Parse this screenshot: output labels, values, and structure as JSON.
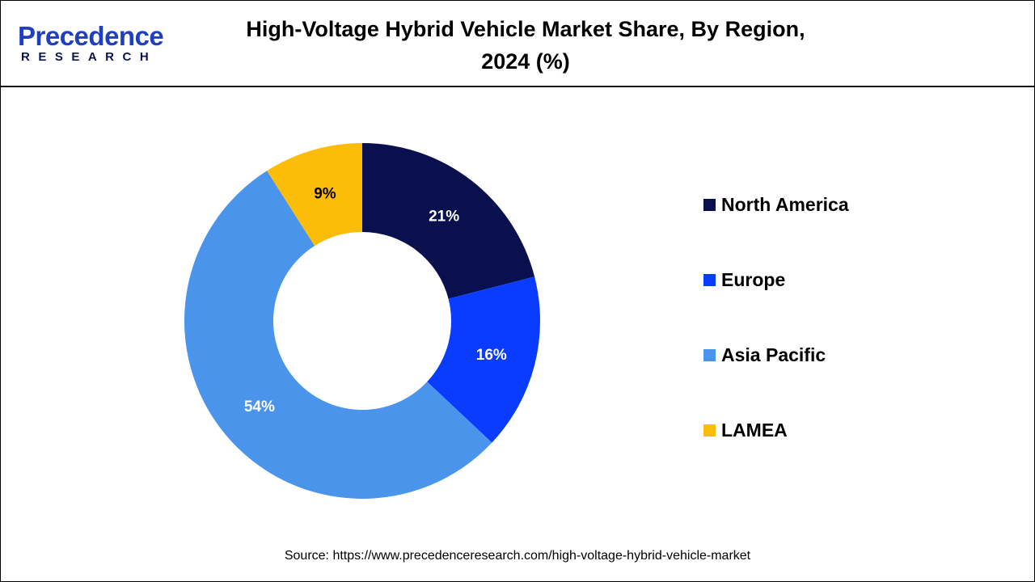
{
  "logo": {
    "text_main": "Precedence",
    "text_sub": "RESEARCH"
  },
  "title": "High-Voltage Hybrid Vehicle Market Share, By Region, 2024 (%)",
  "source": "Source: https://www.precedenceresearch.com/high-voltage-hybrid-vehicle-market",
  "chart_data": {
    "type": "pie",
    "variant": "donut",
    "title": "High-Voltage Hybrid Vehicle Market Share, By Region, 2024 (%)",
    "categories": [
      "North America",
      "Europe",
      "Asia Pacific",
      "LAMEA"
    ],
    "values": [
      21,
      16,
      54,
      9
    ],
    "labels": [
      "21%",
      "16%",
      "54%",
      "9%"
    ],
    "colors": [
      "#0a0f4d",
      "#0a3cff",
      "#4a94ec",
      "#fbbd0a"
    ],
    "legend": "right"
  }
}
